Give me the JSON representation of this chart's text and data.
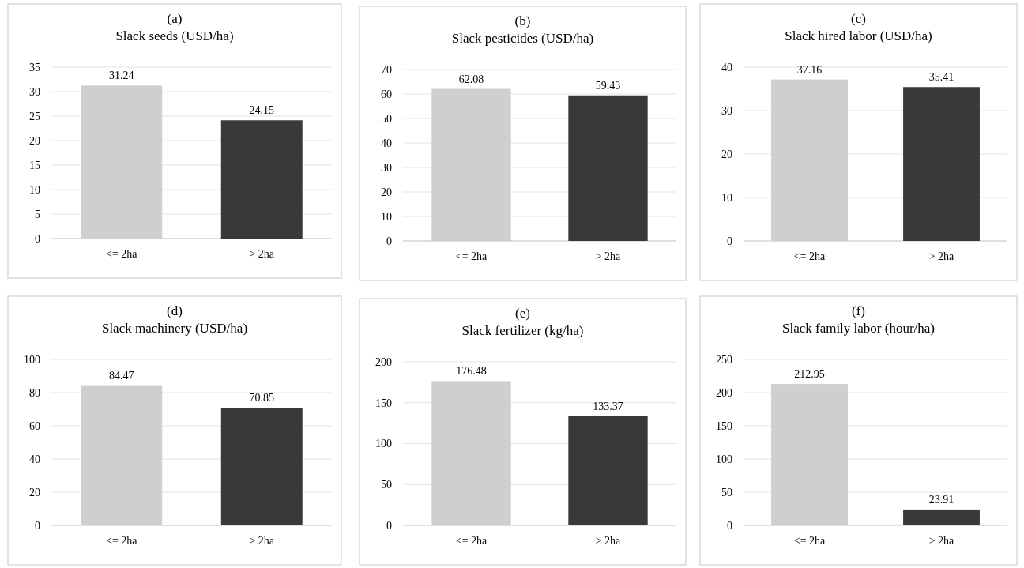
{
  "chart_data": [
    {
      "type": "bar",
      "title": "(a)",
      "subtitle": "Slack seeds (USD/ha)",
      "categories": [
        "<= 2ha",
        "> 2ha"
      ],
      "values": [
        31.24,
        24.15
      ],
      "colors": [
        "#d0cecf",
        "#3a3838"
      ],
      "ylim": [
        0,
        35
      ],
      "yticks": [
        0,
        5,
        10,
        15,
        20,
        25,
        30,
        35
      ],
      "grid": "y",
      "data_labels": true
    },
    {
      "type": "bar",
      "title": "(b)",
      "subtitle": "Slack pesticides (USD/ha)",
      "categories": [
        "<= 2ha",
        "> 2ha"
      ],
      "values": [
        62.08,
        59.43
      ],
      "colors": [
        "#d0cecf",
        "#3a3838"
      ],
      "ylim": [
        0,
        70
      ],
      "yticks": [
        0,
        10,
        20,
        30,
        40,
        50,
        60,
        70
      ],
      "grid": "y",
      "data_labels": true
    },
    {
      "type": "bar",
      "title": "(c)",
      "subtitle": "Slack hired labor (USD/ha)",
      "categories": [
        "<= 2ha",
        "> 2ha"
      ],
      "values": [
        37.16,
        35.41
      ],
      "colors": [
        "#d0cecf",
        "#3a3838"
      ],
      "ylim": [
        0,
        40
      ],
      "yticks": [
        0,
        10,
        20,
        30,
        40
      ],
      "grid": "y",
      "data_labels": true
    },
    {
      "type": "bar",
      "title": "(d)",
      "subtitle": "Slack machinery (USD/ha)",
      "categories": [
        "<= 2ha",
        "> 2ha"
      ],
      "values": [
        84.47,
        70.85
      ],
      "colors": [
        "#d0cecf",
        "#3a3838"
      ],
      "ylim": [
        0,
        100
      ],
      "yticks": [
        0,
        20,
        40,
        60,
        80,
        100
      ],
      "grid": "y",
      "data_labels": true
    },
    {
      "type": "bar",
      "title": "(e)",
      "subtitle": "Slack fertilizer (kg/ha)",
      "categories": [
        "<= 2ha",
        "> 2ha"
      ],
      "values": [
        176.48,
        133.37
      ],
      "colors": [
        "#d0cecf",
        "#3a3838"
      ],
      "ylim": [
        0,
        200
      ],
      "yticks": [
        0,
        50,
        100,
        150,
        200
      ],
      "grid": "y",
      "data_labels": true
    },
    {
      "type": "bar",
      "title": "(f)",
      "subtitle": "Slack family labor (hour/ha)",
      "categories": [
        "<= 2ha",
        "> 2ha"
      ],
      "values": [
        212.95,
        23.91
      ],
      "colors": [
        "#d0cecf",
        "#3a3838"
      ],
      "ylim": [
        0,
        250
      ],
      "yticks": [
        0,
        50,
        100,
        150,
        200,
        250
      ],
      "grid": "y",
      "data_labels": true
    }
  ]
}
